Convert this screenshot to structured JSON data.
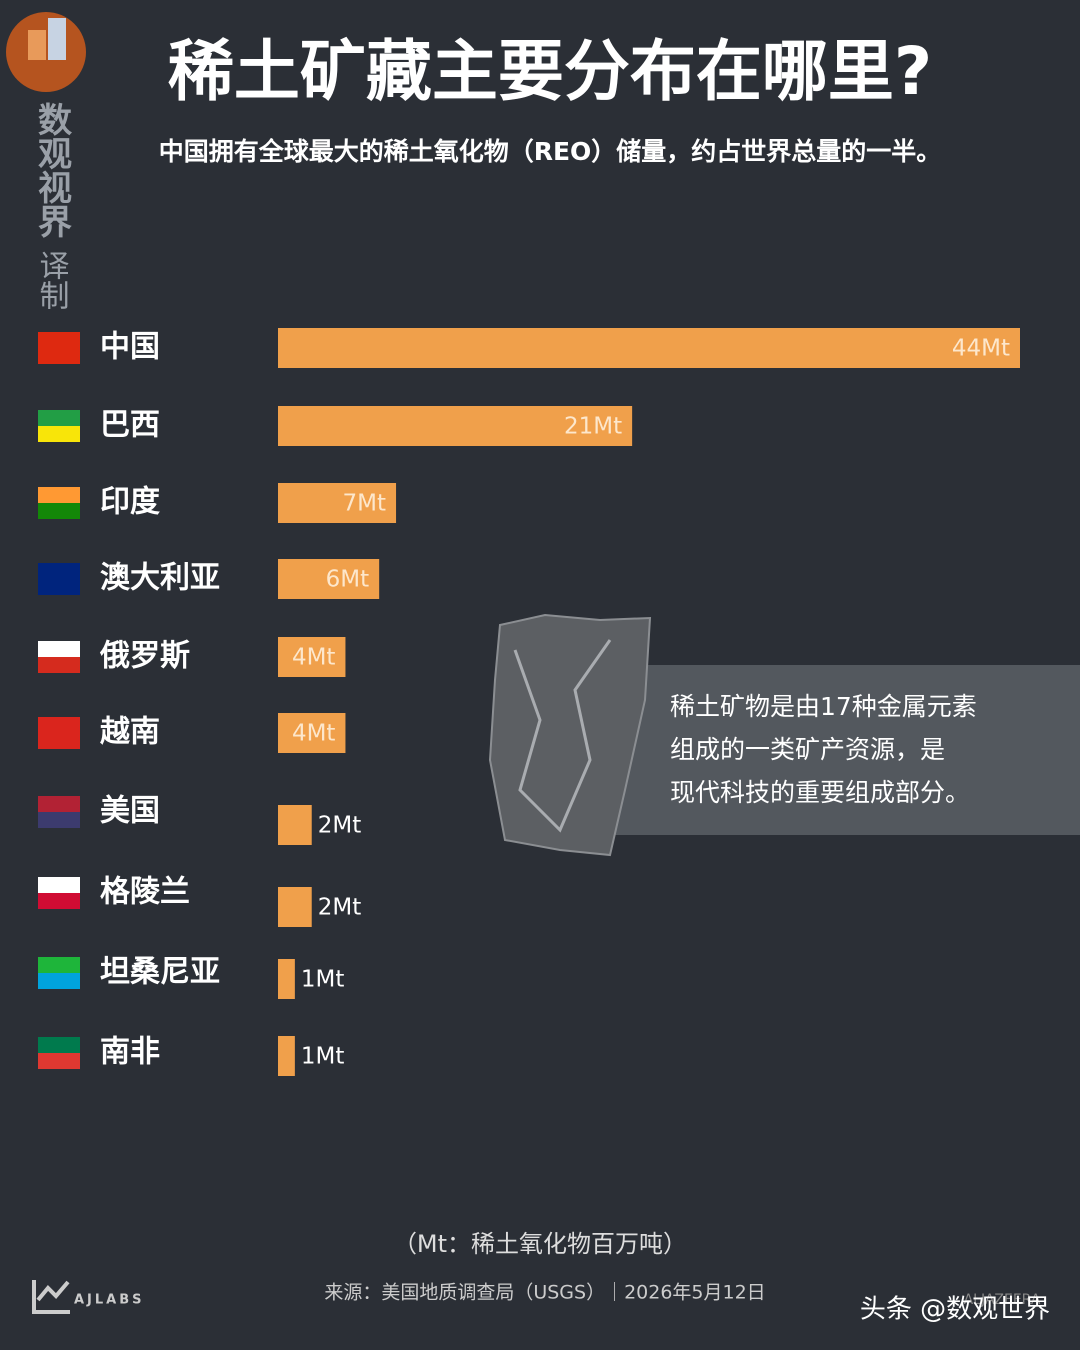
{
  "chart_data": {
    "type": "bar",
    "orientation": "horizontal",
    "title": "稀土矿藏主要分布在哪里?",
    "subtitle": "中国拥有全球最大的稀土氧化物（REO）储量，约占世界总量的一半。",
    "categories": [
      "中国",
      "巴西",
      "印度",
      "澳大利亚",
      "俄罗斯",
      "越南",
      "美国",
      "格陵兰",
      "坦桑尼亚",
      "南非"
    ],
    "values": [
      44,
      21,
      7,
      6,
      4,
      4,
      2,
      2,
      1,
      1
    ],
    "value_labels": [
      "44Mt",
      "21Mt",
      "7Mt",
      "6Mt",
      "4Mt",
      "4Mt",
      "2Mt",
      "2Mt",
      "1Mt",
      "1Mt"
    ],
    "color": "#f0a04b",
    "annotation": [
      "稀土矿物是由17种金属元素",
      "组成的一类矿产资源，是",
      "现代科技的重要组成部分。"
    ],
    "note": "（Mt：稀土氧化物百万吨）",
    "source": "来源：美国地质调查局（USGS）｜2026年5月12日"
  },
  "branding": {
    "channel": "数观视界",
    "credit": "译制",
    "lab": "AJLABS",
    "logo": "ALJAZEERA",
    "platform": "头条 @数观世界"
  }
}
